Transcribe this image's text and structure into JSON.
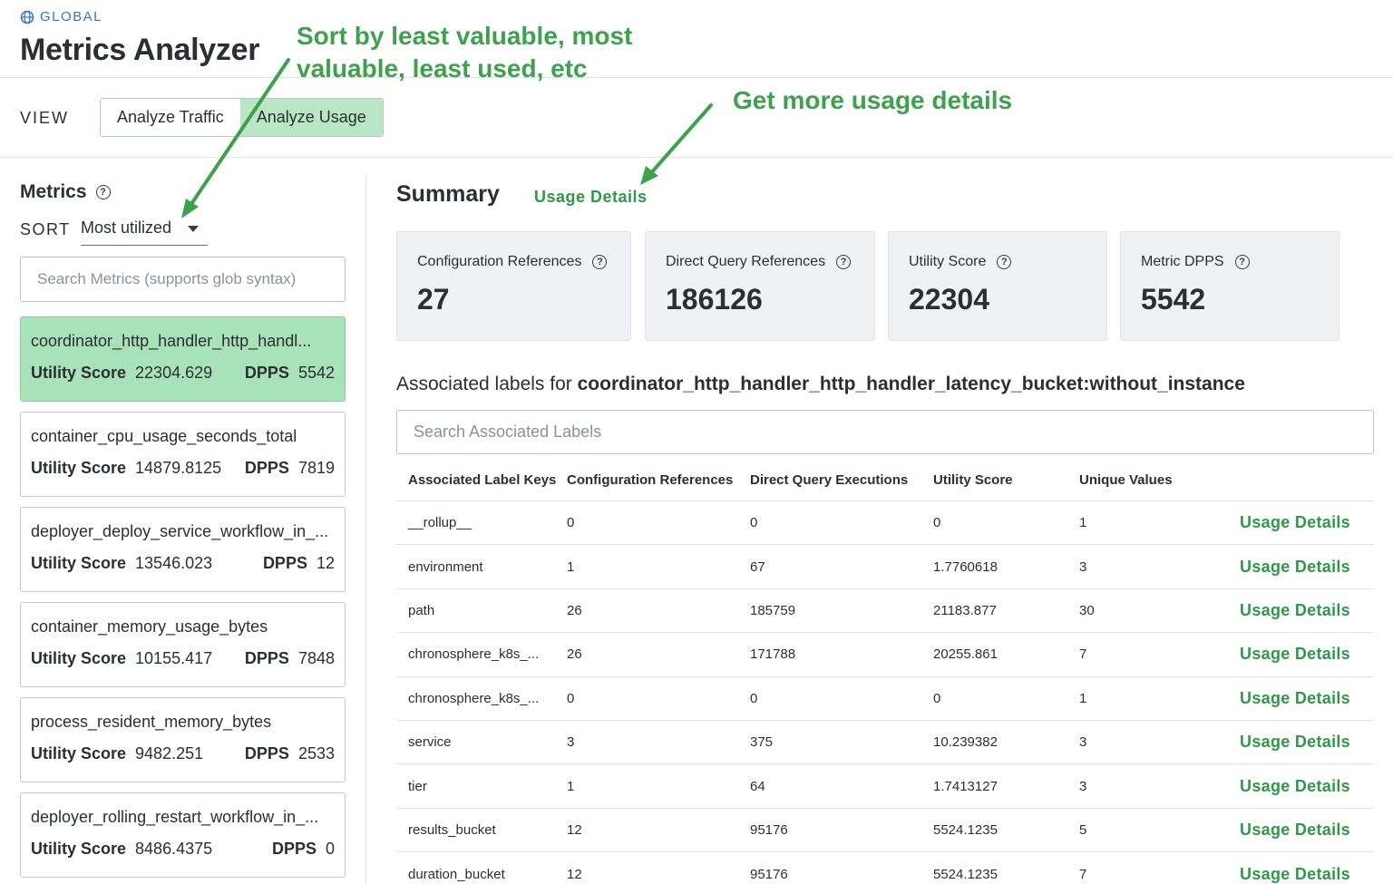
{
  "header": {
    "scope_label": "GLOBAL",
    "title": "Metrics Analyzer"
  },
  "view": {
    "label": "VIEW",
    "options": [
      {
        "label": "Analyze Traffic",
        "active": false
      },
      {
        "label": "Analyze Usage",
        "active": true
      }
    ]
  },
  "annotations": {
    "sort_note_line1": "Sort by least valuable, most",
    "sort_note_line2": "valuable, least used, etc",
    "usage_note": "Get more usage details",
    "color": "#3ca24c"
  },
  "metrics_panel": {
    "title": "Metrics",
    "sort_label": "SORT",
    "sort_value": "Most utilized",
    "search_placeholder": "Search Metrics (supports glob syntax)",
    "score_key": "Utility Score",
    "dpps_key": "DPPS",
    "items": [
      {
        "name": "coordinator_http_handler_http_handl...",
        "utility_score": "22304.629",
        "dpps": "5542",
        "selected": true
      },
      {
        "name": "container_cpu_usage_seconds_total",
        "utility_score": "14879.8125",
        "dpps": "7819",
        "selected": false
      },
      {
        "name": "deployer_deploy_service_workflow_in_...",
        "utility_score": "13546.023",
        "dpps": "12",
        "selected": false
      },
      {
        "name": "container_memory_usage_bytes",
        "utility_score": "10155.417",
        "dpps": "7848",
        "selected": false
      },
      {
        "name": "process_resident_memory_bytes",
        "utility_score": "9482.251",
        "dpps": "2533",
        "selected": false
      },
      {
        "name": "deployer_rolling_restart_workflow_in_...",
        "utility_score": "8486.4375",
        "dpps": "0",
        "selected": false
      }
    ]
  },
  "summary": {
    "title": "Summary",
    "link": "Usage Details",
    "cards": [
      {
        "label": "Configuration References",
        "value": "27"
      },
      {
        "label": "Direct Query References",
        "value": "186126"
      },
      {
        "label": "Utility Score",
        "value": "22304"
      },
      {
        "label": "Metric DPPS",
        "value": "5542"
      }
    ]
  },
  "associated": {
    "title_prefix": "Associated labels for",
    "metric_name": "coordinator_http_handler_http_handler_latency_bucket:without_instance",
    "search_placeholder": "Search Associated Labels",
    "columns": [
      "Associated Label Keys",
      "Configuration References",
      "Direct Query Executions",
      "Utility Score",
      "Unique Values"
    ],
    "link_label": "Usage Details",
    "rows": [
      {
        "key": "__rollup__",
        "config_refs": "0",
        "direct_queries": "0",
        "utility": "0",
        "unique": "1"
      },
      {
        "key": "environment",
        "config_refs": "1",
        "direct_queries": "67",
        "utility": "1.7760618",
        "unique": "3"
      },
      {
        "key": "path",
        "config_refs": "26",
        "direct_queries": "185759",
        "utility": "21183.877",
        "unique": "30"
      },
      {
        "key": "chronosphere_k8s_...",
        "config_refs": "26",
        "direct_queries": "171788",
        "utility": "20255.861",
        "unique": "7"
      },
      {
        "key": "chronosphere_k8s_...",
        "config_refs": "0",
        "direct_queries": "0",
        "utility": "0",
        "unique": "1"
      },
      {
        "key": "service",
        "config_refs": "3",
        "direct_queries": "375",
        "utility": "10.239382",
        "unique": "3"
      },
      {
        "key": "tier",
        "config_refs": "1",
        "direct_queries": "64",
        "utility": "1.7413127",
        "unique": "3"
      },
      {
        "key": "results_bucket",
        "config_refs": "12",
        "direct_queries": "95176",
        "utility": "5524.1235",
        "unique": "5"
      },
      {
        "key": "duration_bucket",
        "config_refs": "12",
        "direct_queries": "95176",
        "utility": "5524.1235",
        "unique": "7"
      }
    ]
  },
  "colors": {
    "accent_green": "#2e9a48",
    "selected_bg": "#a8e2b8",
    "toggle_active_bg": "#b9e7c6",
    "scope_blue": "#3b73c4"
  }
}
